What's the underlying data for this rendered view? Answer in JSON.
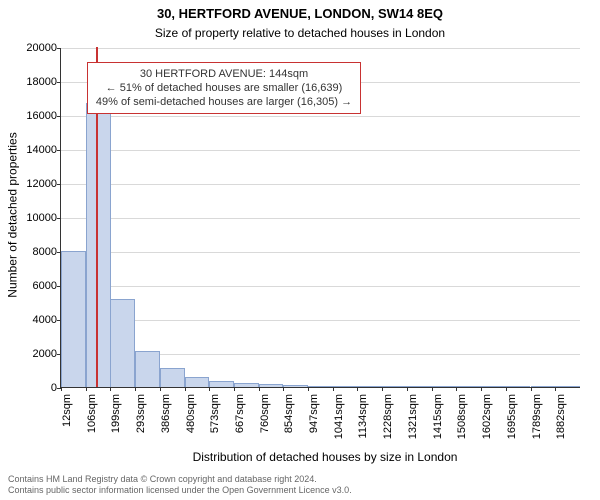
{
  "title_line1": "30, HERTFORD AVENUE, LONDON, SW14 8EQ",
  "title_line2": "Size of property relative to detached houses in London",
  "title_fontsize": 13,
  "subtitle_fontsize": 12,
  "y_axis_label": "Number of detached properties",
  "x_axis_label": "Distribution of detached houses by size in London",
  "axis_label_fontsize": 12,
  "tick_fontsize": 11,
  "footer_line1": "Contains HM Land Registry data © Crown copyright and database right 2024.",
  "footer_line2": "Contains public sector information licensed under the Open Government Licence v3.0.",
  "footer_fontsize": 9,
  "footer_color": "#666666",
  "chart": {
    "type": "histogram",
    "background_color": "#ffffff",
    "grid_color": "#d9d9d9",
    "axis_color": "#333333",
    "bar_fill": "#c9d6ec",
    "bar_border": "#8aa4cf",
    "bar_border_width": 1,
    "ylim": [
      0,
      20000
    ],
    "ytick_step": 2000,
    "yticks": [
      0,
      2000,
      4000,
      6000,
      8000,
      10000,
      12000,
      14000,
      16000,
      18000,
      20000
    ],
    "xlim_sqm": [
      12,
      1980
    ],
    "xtick_labels": [
      "12sqm",
      "106sqm",
      "199sqm",
      "293sqm",
      "386sqm",
      "480sqm",
      "573sqm",
      "667sqm",
      "760sqm",
      "854sqm",
      "947sqm",
      "1041sqm",
      "1134sqm",
      "1228sqm",
      "1321sqm",
      "1415sqm",
      "1508sqm",
      "1602sqm",
      "1695sqm",
      "1789sqm",
      "1882sqm"
    ],
    "xtick_positions_sqm": [
      12,
      106,
      199,
      293,
      386,
      480,
      573,
      667,
      760,
      854,
      947,
      1041,
      1134,
      1228,
      1321,
      1415,
      1508,
      1602,
      1695,
      1789,
      1882
    ],
    "bin_width_sqm": 93.5,
    "bars": [
      {
        "start_sqm": 12,
        "count": 8000
      },
      {
        "start_sqm": 106,
        "count": 16700
      },
      {
        "start_sqm": 199,
        "count": 5200
      },
      {
        "start_sqm": 293,
        "count": 2100
      },
      {
        "start_sqm": 386,
        "count": 1100
      },
      {
        "start_sqm": 480,
        "count": 600
      },
      {
        "start_sqm": 573,
        "count": 350
      },
      {
        "start_sqm": 667,
        "count": 220
      },
      {
        "start_sqm": 760,
        "count": 150
      },
      {
        "start_sqm": 854,
        "count": 110
      },
      {
        "start_sqm": 947,
        "count": 60
      },
      {
        "start_sqm": 1041,
        "count": 50
      },
      {
        "start_sqm": 1134,
        "count": 30
      },
      {
        "start_sqm": 1228,
        "count": 20
      },
      {
        "start_sqm": 1321,
        "count": 20
      },
      {
        "start_sqm": 1415,
        "count": 15
      },
      {
        "start_sqm": 1508,
        "count": 10
      },
      {
        "start_sqm": 1602,
        "count": 10
      },
      {
        "start_sqm": 1695,
        "count": 8
      },
      {
        "start_sqm": 1789,
        "count": 5
      },
      {
        "start_sqm": 1882,
        "count": 5
      }
    ],
    "marker": {
      "position_sqm": 144,
      "line_color": "#c83232",
      "line_width": 2
    },
    "callout": {
      "border_color": "#c83232",
      "border_width": 1,
      "text_color": "#333333",
      "fontsize": 11,
      "line1": "30 HERTFORD AVENUE: 144sqm",
      "line2": "← 51% of detached houses are smaller (16,639)",
      "line3": "49% of semi-detached houses are larger (16,305) →",
      "left_sqm": 110,
      "top_count": 19200
    }
  }
}
